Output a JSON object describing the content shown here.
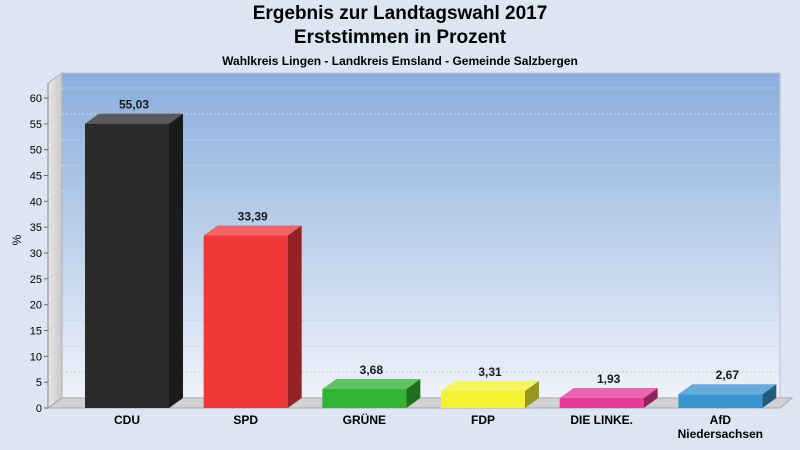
{
  "chart_data": {
    "type": "bar",
    "title": "Ergebnis zur Landtagswahl 2017",
    "title2": "Erststimmen in Prozent",
    "subtitle": "Wahlkreis Lingen - Landkreis Emsland - Gemeinde Salzbergen",
    "ylabel": "%",
    "ylim": [
      0,
      60
    ],
    "yticks": [
      0,
      5,
      10,
      15,
      20,
      25,
      30,
      35,
      40,
      45,
      50,
      55,
      60
    ],
    "grid": true,
    "categories": [
      "CDU",
      "SPD",
      "GRÜNE",
      "FDP",
      "DIE LINKE.",
      "AfD Niedersachsen"
    ],
    "category_lines": [
      [
        "CDU"
      ],
      [
        "SPD"
      ],
      [
        "GRÜNE"
      ],
      [
        "FDP"
      ],
      [
        "DIE LINKE."
      ],
      [
        "AfD",
        "Niedersachsen"
      ]
    ],
    "values": [
      55.03,
      33.39,
      3.68,
      3.31,
      1.93,
      2.67
    ],
    "value_labels": [
      "55,03",
      "33,39",
      "3,68",
      "3,31",
      "1,93",
      "2,67"
    ],
    "colors": [
      "#2b2b2b",
      "#f03838",
      "#33b533",
      "#f2f233",
      "#e83a9a",
      "#3a94d0"
    ]
  }
}
